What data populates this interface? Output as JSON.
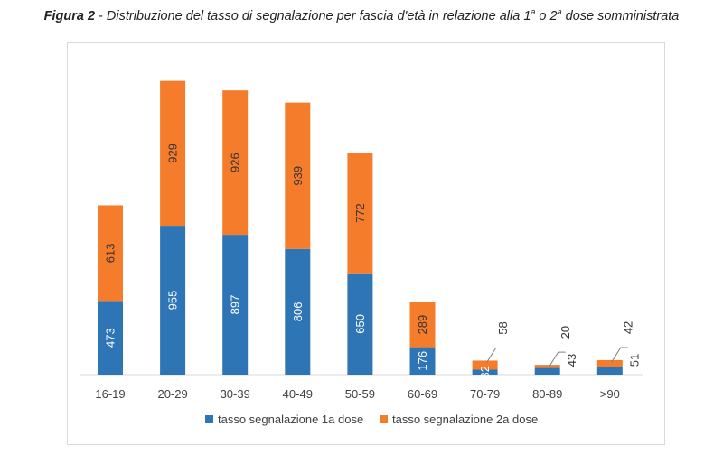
{
  "caption": {
    "figure": "Figura 2",
    "text_pre": " - Distribuzione del tasso di segnalazione per fascia d'età in relazione alla 1",
    "sup1": "a",
    "text_mid": " o 2",
    "sup2": "a",
    "text_post": " dose somministrata"
  },
  "colors": {
    "series1": "#2e75b6",
    "series2": "#f47c2a",
    "axis": "#d9d9d9"
  },
  "chart_data": {
    "type": "bar",
    "stacked": true,
    "categories": [
      "16-19",
      "20-29",
      "30-39",
      "40-49",
      "50-59",
      "60-69",
      "70-79",
      "80-89",
      ">90"
    ],
    "series": [
      {
        "name": "tasso segnalazione 1a dose",
        "values": [
          473,
          955,
          897,
          806,
          650,
          176,
          32,
          43,
          51
        ]
      },
      {
        "name": "tasso segnalazione 2a dose",
        "values": [
          613,
          929,
          926,
          939,
          772,
          289,
          58,
          20,
          42
        ]
      }
    ],
    "legend_position": "bottom",
    "grid": false
  }
}
